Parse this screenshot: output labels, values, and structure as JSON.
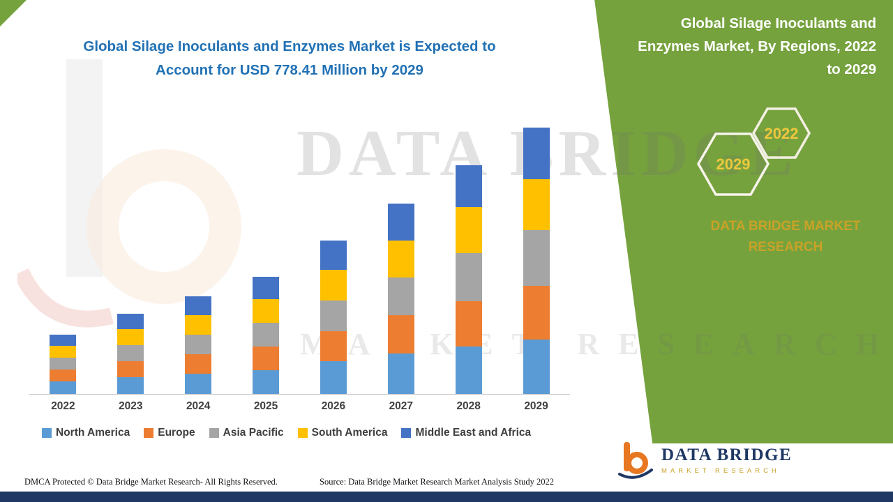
{
  "header": {
    "title": "Global Silage Inoculants and Enzymes Market is Expected to Account for USD 778.41 Million by 2029"
  },
  "panel": {
    "title": "Global Silage Inoculants and Enzymes Market,  By Regions, 2022 to 2029",
    "hexagon_front": "2029",
    "hexagon_back": "2022",
    "brand": "DATA BRIDGE MARKET RESEARCH"
  },
  "watermark": {
    "line1": "DATA BRIDGE",
    "line2": "MARKET RESEARCH"
  },
  "footer": {
    "dmca": "DMCA Protected © Data Bridge Market Research- All Rights Reserved.",
    "source": "Source: Data Bridge Market Research Market Analysis Study 2022"
  },
  "logo": {
    "name": "DATA BRIDGE",
    "tagline": "MARKET RESEARCH"
  },
  "colors": {
    "green_panel": "#76A23E",
    "navy": "#1F3864",
    "title_blue": "#2171B5",
    "gold": "#C9A227",
    "hexagon_year_text": "#EDC83D",
    "orange_logo": "#E87722"
  },
  "chart_data": {
    "type": "bar",
    "stacked": true,
    "title": "Global Silage Inoculants and Enzymes Market is Expected to Account for USD 778.41 Million by 2029",
    "units": "USD Million",
    "xlabel": "",
    "ylabel": "",
    "ylim": [
      0,
      800
    ],
    "grid": false,
    "axis_value_labels_visible": false,
    "legend_position": "bottom",
    "categories": [
      "2022",
      "2023",
      "2024",
      "2025",
      "2026",
      "2027",
      "2028",
      "2029"
    ],
    "series": [
      {
        "name": "North America",
        "color": "#5B9BD5",
        "values": [
          36,
          49,
          60,
          70,
          96,
          118,
          139,
          159
        ]
      },
      {
        "name": "Europe",
        "color": "#ED7D31",
        "values": [
          35,
          47,
          57,
          68,
          88,
          112,
          132,
          157
        ]
      },
      {
        "name": "Asia Pacific",
        "color": "#A5A5A5",
        "values": [
          35,
          47,
          57,
          70,
          88,
          110,
          141,
          163
        ]
      },
      {
        "name": "South America",
        "color": "#FFC000",
        "values": [
          34,
          46,
          56,
          68,
          90,
          108,
          134,
          149
        ]
      },
      {
        "name": "Middle East and Africa",
        "color": "#4472C4",
        "values": [
          33,
          45,
          55,
          66,
          86,
          108,
          122,
          150.41
        ]
      }
    ],
    "totals_estimated": [
      173,
      234,
      285,
      342,
      448,
      556,
      668,
      778.41
    ],
    "stated_value_2029": "USD 778.41 Million"
  }
}
